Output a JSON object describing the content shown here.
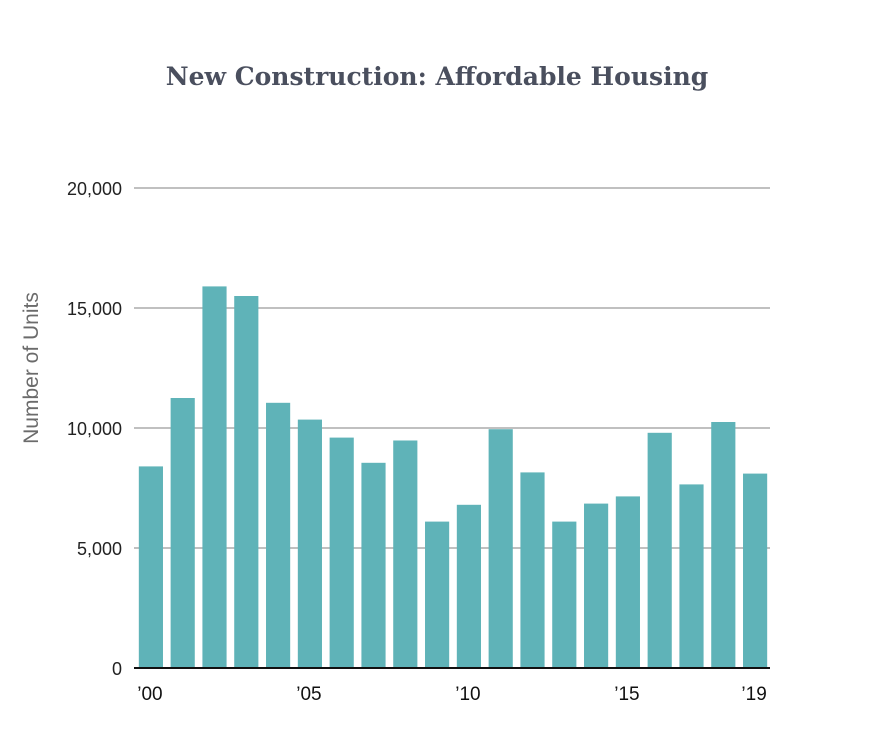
{
  "chart_data": {
    "type": "bar",
    "title": "New Construction: Affordable Housing",
    "xlabel": "",
    "ylabel": "Number of Units",
    "ylim": [
      0,
      20000
    ],
    "yticks": [
      0,
      5000,
      10000,
      15000,
      20000
    ],
    "ytick_labels": [
      "0",
      "5,000",
      "10,000",
      "15,000",
      "20,000"
    ],
    "grid": true,
    "bar_color": "#5fb3b8",
    "categories": [
      "2000",
      "2001",
      "2002",
      "2003",
      "2004",
      "2005",
      "2006",
      "2007",
      "2008",
      "2009",
      "2010",
      "2011",
      "2012",
      "2013",
      "2014",
      "2015",
      "2016",
      "2017",
      "2018",
      "2019"
    ],
    "xtick_labels": [
      {
        "index": 0,
        "label": "’00"
      },
      {
        "index": 5,
        "label": "’05"
      },
      {
        "index": 10,
        "label": "’10"
      },
      {
        "index": 15,
        "label": "’15"
      },
      {
        "index": 19,
        "label": "’19"
      }
    ],
    "values": [
      8400,
      11250,
      15900,
      15500,
      11050,
      10350,
      9600,
      8550,
      9480,
      6100,
      6800,
      9950,
      8150,
      6100,
      6850,
      7150,
      9800,
      7650,
      10250,
      8100
    ]
  }
}
